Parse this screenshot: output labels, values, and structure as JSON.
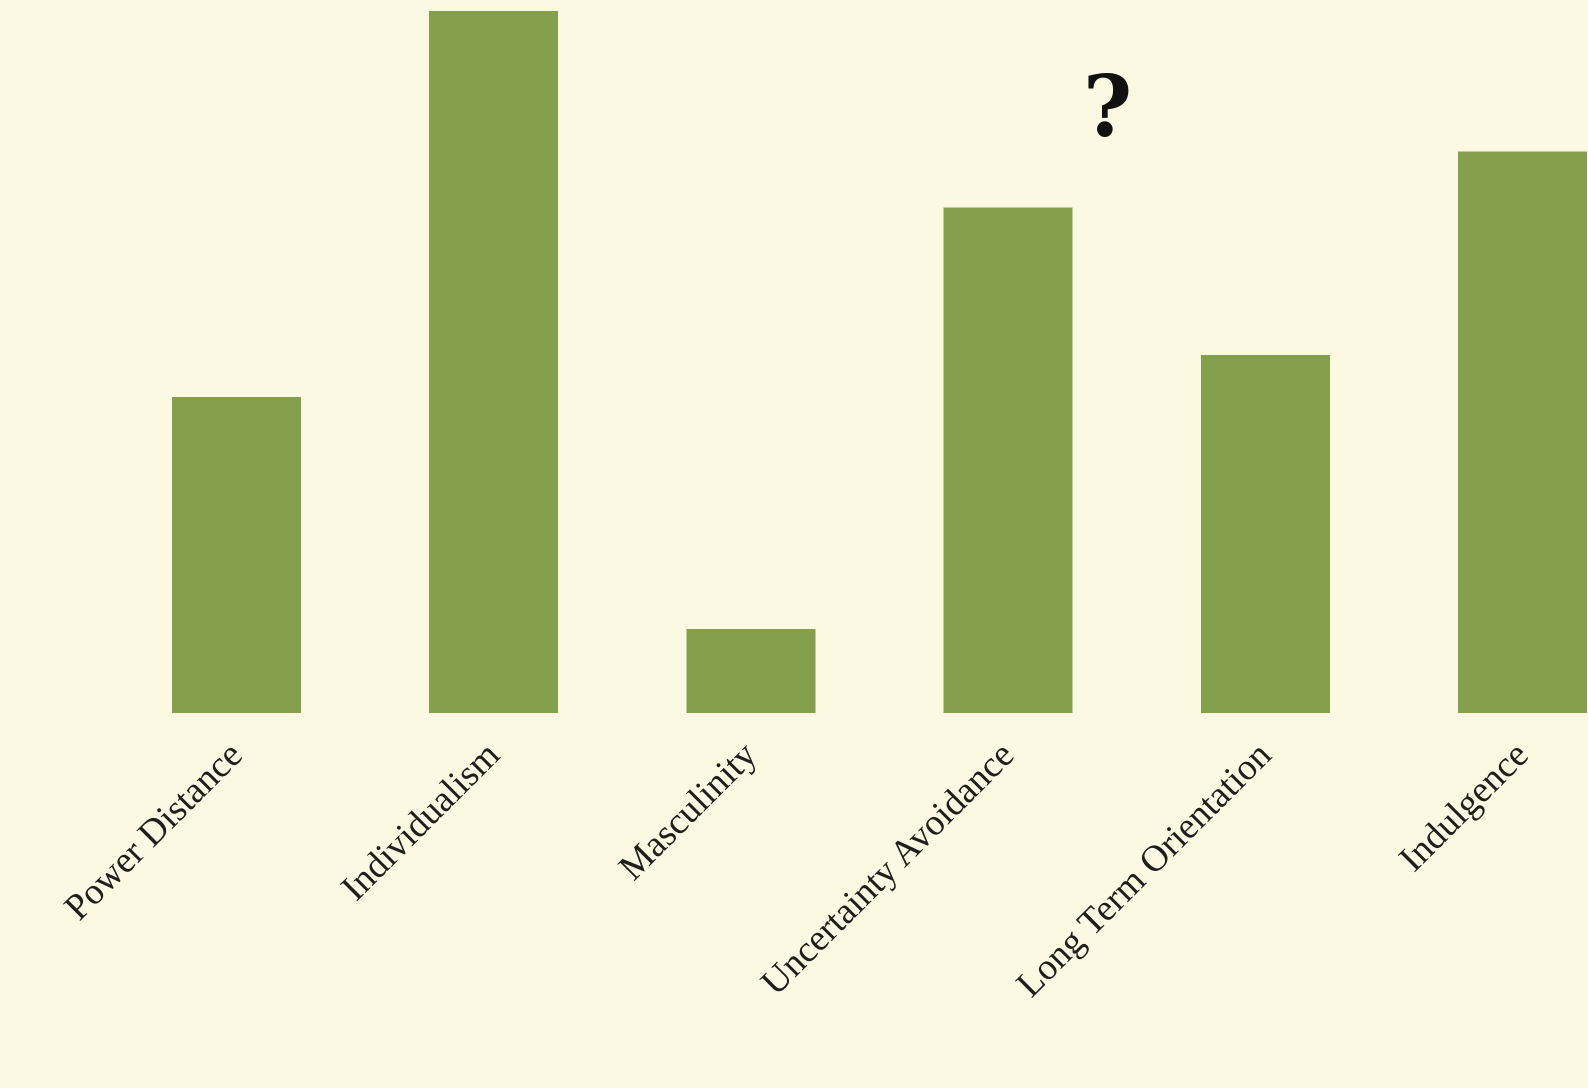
{
  "chart_data": {
    "type": "bar",
    "categories": [
      "Power Distance",
      "Individualism",
      "Masculinity",
      "Uncertainty Avoidance",
      "Long Term Orientation",
      "Indulgence"
    ],
    "values": [
      45,
      100,
      12,
      72,
      51,
      80
    ],
    "ylim": [
      0,
      100
    ],
    "annotations": [
      {
        "text": "?",
        "near_category": "Uncertainty Avoidance"
      }
    ],
    "grid": false,
    "legend": "none",
    "colors": {
      "background": "#fcf9e3",
      "bar": "#85a04d",
      "label": "#1e1e1e"
    }
  }
}
